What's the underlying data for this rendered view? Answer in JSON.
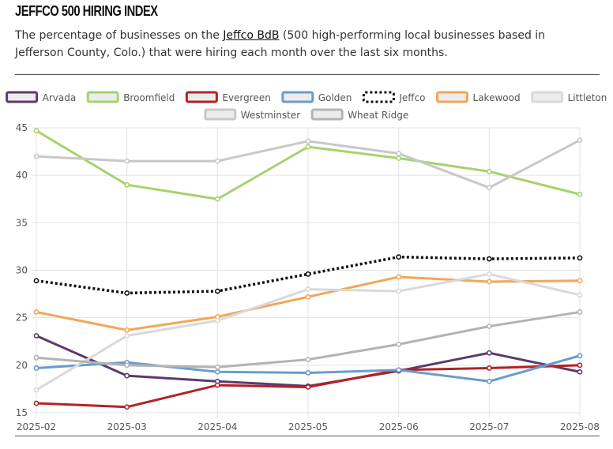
{
  "header": {
    "title": "JEFFCO 500 HIRING INDEX",
    "subtitle_pre": "The percentage of businesses on the ",
    "subtitle_link": "Jeffco BdB",
    "subtitle_post": " (500 high-performing local businesses based in Jefferson County, Colo.) that were hiring each month over the last six months."
  },
  "chart_data": {
    "type": "line",
    "x": [
      "2025-02",
      "2025-03",
      "2025-04",
      "2025-05",
      "2025-06",
      "2025-07",
      "2025-08"
    ],
    "ylim": [
      15,
      45
    ],
    "yticks": [
      15,
      20,
      25,
      30,
      35,
      40,
      45
    ],
    "grid": true,
    "legend": "top",
    "series": [
      {
        "name": "Arvada",
        "color": "#5b3a6e",
        "dashed": false,
        "values": [
          23.1,
          18.9,
          18.3,
          17.8,
          19.4,
          21.3,
          19.3
        ]
      },
      {
        "name": "Broomfield",
        "color": "#a9d16b",
        "dashed": false,
        "values": [
          44.7,
          39.0,
          37.5,
          43.0,
          41.8,
          40.4,
          38.0
        ]
      },
      {
        "name": "Evergreen",
        "color": "#b32226",
        "dashed": false,
        "values": [
          16.0,
          15.6,
          17.9,
          17.7,
          19.5,
          19.7,
          20.0
        ]
      },
      {
        "name": "Golden",
        "color": "#6a9bd0",
        "dashed": false,
        "values": [
          19.7,
          20.3,
          19.3,
          19.2,
          19.5,
          18.3,
          21.0
        ]
      },
      {
        "name": "Jeffco",
        "color": "#111111",
        "dashed": true,
        "values": [
          28.9,
          27.6,
          27.8,
          29.6,
          31.4,
          31.2,
          31.3
        ]
      },
      {
        "name": "Lakewood",
        "color": "#f2a65a",
        "dashed": false,
        "values": [
          25.6,
          23.7,
          25.1,
          27.2,
          29.3,
          28.8,
          28.9
        ]
      },
      {
        "name": "Littleton",
        "color": "#d9d9d9",
        "dashed": false,
        "values": [
          17.4,
          23.1,
          24.7,
          28.0,
          27.8,
          29.6,
          27.4
        ]
      },
      {
        "name": "Westminster",
        "color": "#c8c8c8",
        "dashed": false,
        "values": [
          42.0,
          41.5,
          41.5,
          43.6,
          42.3,
          38.7,
          43.7
        ]
      },
      {
        "name": "Wheat Ridge",
        "color": "#b3b3b3",
        "dashed": false,
        "values": [
          20.8,
          20.0,
          19.8,
          20.6,
          22.2,
          24.1,
          25.6
        ]
      }
    ]
  }
}
